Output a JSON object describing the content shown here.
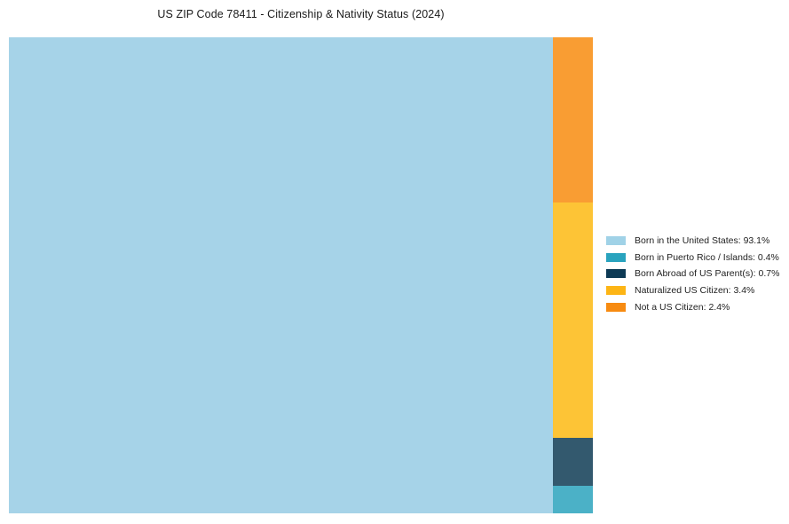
{
  "chart_data": {
    "type": "treemap",
    "title": "US ZIP Code 78411 - Citizenship & Nativity Status (2024)",
    "unit": "%",
    "total": 100.0,
    "legend_position": "right-center",
    "layout": {
      "largest_block": "left-full-height",
      "remainder_column": "right column, stacked bottom-to-top in series order",
      "plot_background": "#ffffff"
    },
    "series": [
      {
        "id": "born-in-us",
        "label": "Born in the United States",
        "value": 93.1,
        "legend_label": "Born in the United States: 93.1%",
        "fill": "#a6d3e8",
        "legend_color": "#a0d2e7"
      },
      {
        "id": "born-in-puerto-rico-islands",
        "label": "Born in Puerto Rico / Islands",
        "value": 0.4,
        "legend_label": "Born in Puerto Rico / Islands: 0.4%",
        "fill": "#4bb1c7",
        "legend_color": "#29a3be"
      },
      {
        "id": "born-abroad-of-us-parents",
        "label": "Born Abroad of US Parent(s)",
        "value": 0.7,
        "legend_label": "Born Abroad of US Parent(s): 0.7%",
        "fill": "#33596e",
        "legend_color": "#0d3a55"
      },
      {
        "id": "naturalized-us-citizen",
        "label": "Naturalized US Citizen",
        "value": 3.4,
        "legend_label": "Naturalized US Citizen: 3.4%",
        "fill": "#fdc436",
        "legend_color": "#fdb515"
      },
      {
        "id": "not-a-us-citizen",
        "label": "Not a US Citizen",
        "value": 2.4,
        "legend_label": "Not a US Citizen: 2.4%",
        "fill": "#f99d33",
        "legend_color": "#f78b11"
      }
    ]
  }
}
